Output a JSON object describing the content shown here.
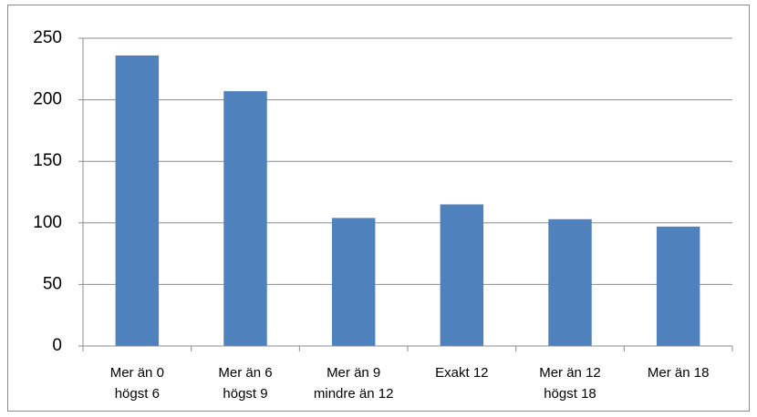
{
  "chart_data": {
    "type": "bar",
    "categories": [
      [
        "Mer än 0",
        "högst 6"
      ],
      [
        "Mer än 6",
        "högst 9"
      ],
      [
        "Mer än 9",
        "mindre än 12"
      ],
      [
        "Exakt 12"
      ],
      [
        "Mer än 12",
        "högst 18"
      ],
      [
        "Mer än 18"
      ]
    ],
    "values": [
      236,
      207,
      104,
      115,
      103,
      97
    ],
    "color": "#4f81bd",
    "ylim": [
      0,
      250
    ],
    "yticks": [
      0,
      50,
      100,
      150,
      200,
      250
    ],
    "grid": true
  }
}
